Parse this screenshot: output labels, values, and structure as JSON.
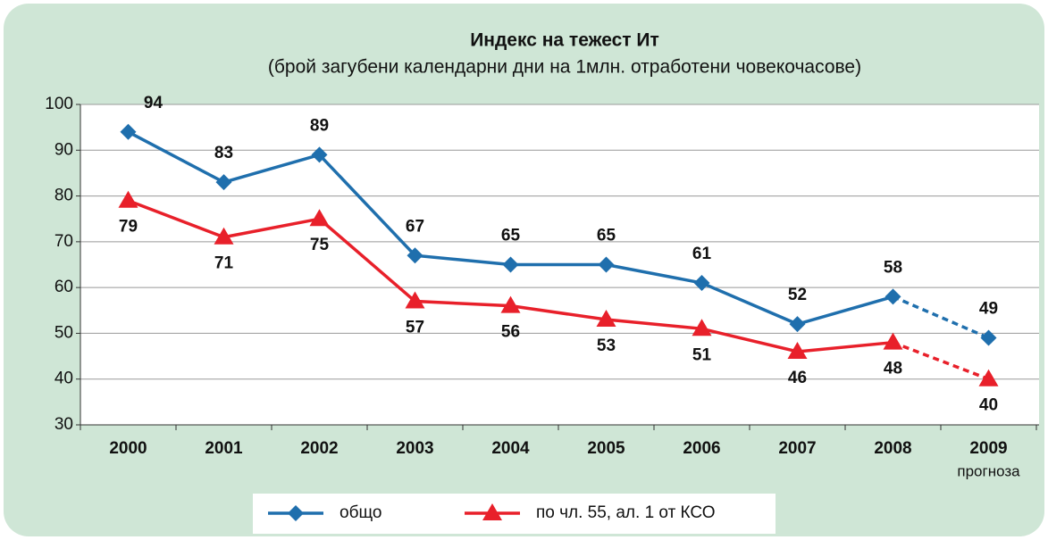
{
  "chart_data": {
    "type": "line",
    "title": "Индекс на тежест Ит",
    "subtitle": "(брой загубени календарни дни на 1млн. отработени човекочасове)",
    "categories": [
      "2000",
      "2001",
      "2002",
      "2003",
      "2004",
      "2005",
      "2006",
      "2007",
      "2008",
      "2009"
    ],
    "category_notes": [
      null,
      null,
      null,
      null,
      null,
      null,
      null,
      null,
      null,
      "прогноза"
    ],
    "series": [
      {
        "name": "общо",
        "color": "#1f6fad",
        "marker": "diamond",
        "values": [
          94,
          83,
          89,
          67,
          65,
          65,
          61,
          52,
          58,
          49
        ]
      },
      {
        "name": "по чл. 55, ал. 1 от КСО",
        "color": "#e8202a",
        "marker": "triangle",
        "values": [
          79,
          71,
          75,
          57,
          56,
          53,
          51,
          46,
          48,
          40
        ]
      }
    ],
    "dashed_last_segment": true,
    "ylim": [
      30,
      100
    ],
    "yticks": [
      30,
      40,
      50,
      60,
      70,
      80,
      90,
      100
    ],
    "grid": true,
    "legend": "bottom"
  }
}
